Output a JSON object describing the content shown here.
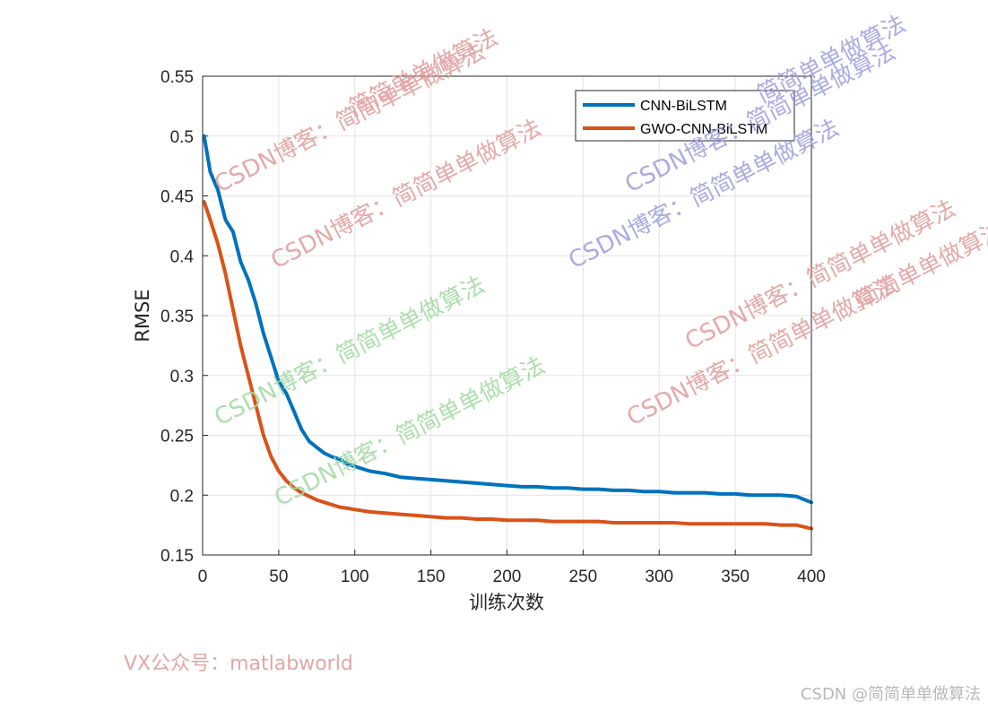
{
  "chart_data": {
    "type": "line",
    "title": "",
    "xlabel": "训练次数",
    "ylabel": "RMSE",
    "xlim": [
      0,
      400
    ],
    "ylim": [
      0.15,
      0.55
    ],
    "xticks": [
      "0",
      "50",
      "100",
      "150",
      "200",
      "250",
      "300",
      "350",
      "400"
    ],
    "yticks": [
      "0.15",
      "0.2",
      "0.25",
      "0.3",
      "0.35",
      "0.4",
      "0.45",
      "0.5",
      "0.55"
    ],
    "grid": true,
    "legend_position": "top-right",
    "x": [
      1,
      5,
      10,
      15,
      20,
      25,
      30,
      35,
      40,
      45,
      50,
      55,
      60,
      65,
      70,
      75,
      80,
      85,
      90,
      95,
      100,
      110,
      120,
      130,
      140,
      150,
      160,
      170,
      180,
      190,
      200,
      210,
      220,
      230,
      240,
      250,
      260,
      270,
      280,
      290,
      300,
      310,
      320,
      330,
      340,
      350,
      360,
      370,
      380,
      390,
      400
    ],
    "series": [
      {
        "name": "CNN-BiLSTM",
        "color": "#0072BD",
        "values": [
          0.5,
          0.47,
          0.455,
          0.43,
          0.42,
          0.395,
          0.38,
          0.36,
          0.335,
          0.315,
          0.295,
          0.285,
          0.27,
          0.255,
          0.245,
          0.24,
          0.235,
          0.232,
          0.23,
          0.226,
          0.224,
          0.22,
          0.218,
          0.215,
          0.214,
          0.213,
          0.212,
          0.211,
          0.21,
          0.209,
          0.208,
          0.207,
          0.207,
          0.206,
          0.206,
          0.205,
          0.205,
          0.204,
          0.204,
          0.203,
          0.203,
          0.202,
          0.202,
          0.202,
          0.201,
          0.201,
          0.2,
          0.2,
          0.2,
          0.199,
          0.194
        ]
      },
      {
        "name": "GWO-CNN-BiLSTM",
        "color": "#D95319",
        "values": [
          0.445,
          0.43,
          0.41,
          0.385,
          0.355,
          0.325,
          0.3,
          0.275,
          0.25,
          0.232,
          0.22,
          0.212,
          0.206,
          0.202,
          0.199,
          0.196,
          0.194,
          0.192,
          0.19,
          0.189,
          0.188,
          0.186,
          0.185,
          0.184,
          0.183,
          0.182,
          0.181,
          0.181,
          0.18,
          0.18,
          0.179,
          0.179,
          0.179,
          0.178,
          0.178,
          0.178,
          0.178,
          0.177,
          0.177,
          0.177,
          0.177,
          0.177,
          0.176,
          0.176,
          0.176,
          0.176,
          0.176,
          0.176,
          0.175,
          0.175,
          0.172
        ]
      }
    ]
  },
  "watermarks": [
    {
      "text": "CSDN博客：简简单单做算法",
      "color": "#e09a9a"
    },
    {
      "text": "简简单单做算法",
      "color": "#e09a9a"
    },
    {
      "text": "CSDN博客：简简单单做算法",
      "color": "#e09a9a"
    },
    {
      "text": "简简单单做算法",
      "color": "#9c9ce0"
    },
    {
      "text": "CSDN博客：简简单单做算法",
      "color": "#9c9ce0"
    },
    {
      "text": "CSDN博客：简简单单做算法",
      "color": "#9c9ce0"
    },
    {
      "text": "CSDN博客：简简单单做算法",
      "color": "#9fd99f"
    },
    {
      "text": "CSDN博客：简简单单做算法",
      "color": "#9fd99f"
    },
    {
      "text": "简简单单做算法",
      "color": "#e09a9a"
    },
    {
      "text": "CSDN博客：简简单单做算法",
      "color": "#e09a9a"
    },
    {
      "text": "CSDN博客：简简单单做算法",
      "color": "#e09a9a"
    }
  ],
  "footer": {
    "left": "VX公众号：matlabworld",
    "right": "CSDN @简简单单做算法"
  }
}
